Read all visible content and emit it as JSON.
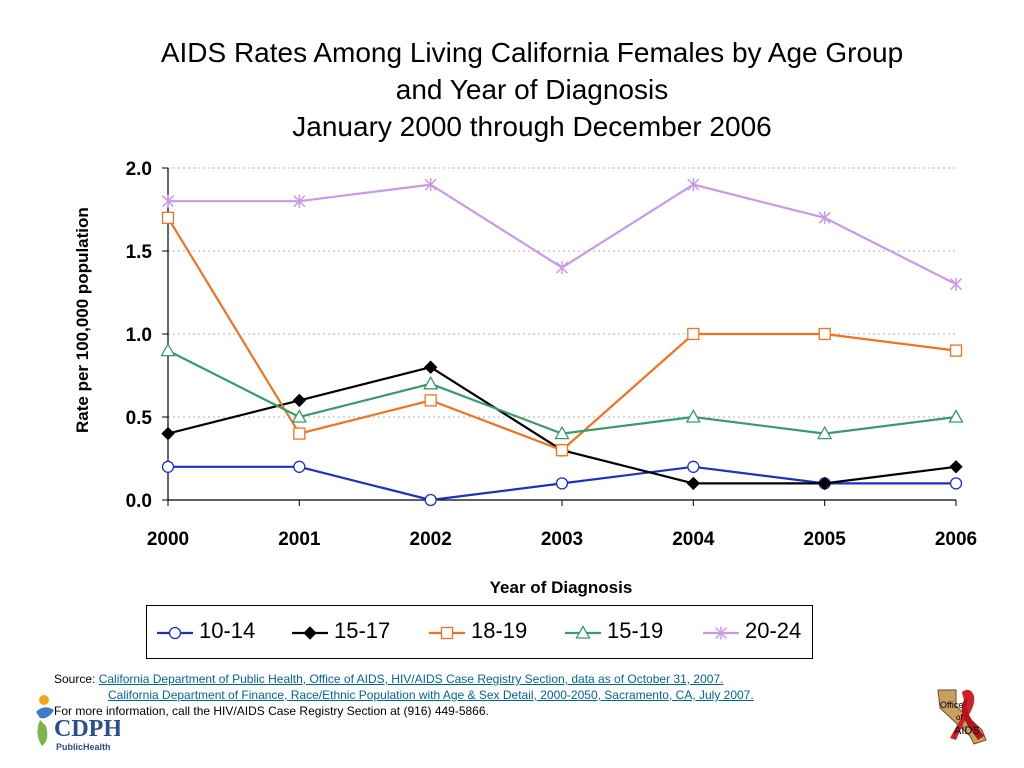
{
  "chart_data": {
    "type": "line",
    "title": "AIDS Rates Among Living California Females by Age Group",
    "title_line2": "and Year of Diagnosis",
    "subtitle": "January 2000 through December 2006",
    "xlabel": "Year of Diagnosis",
    "ylabel": "Rate per 100,000 population",
    "x": [
      "2000",
      "2001",
      "2002",
      "2003",
      "2004",
      "2005",
      "2006"
    ],
    "ylim": [
      0,
      2.0
    ],
    "yticks": [
      "0.0",
      "0.5",
      "1.0",
      "1.5",
      "2.0"
    ],
    "grid": "horizontal dotted",
    "legend_position": "bottom",
    "series": [
      {
        "name": "10-14",
        "color": "#1f2fbf",
        "marker": "circle",
        "values": [
          0.2,
          0.2,
          0.0,
          0.1,
          0.2,
          0.1,
          0.1
        ]
      },
      {
        "name": "15-17",
        "color": "#000000",
        "marker": "diamond",
        "values": [
          0.4,
          0.6,
          0.8,
          0.3,
          0.1,
          0.1,
          0.2
        ]
      },
      {
        "name": "18-19",
        "color": "#f0731f",
        "marker": "square",
        "values": [
          1.7,
          0.4,
          0.6,
          0.3,
          1.0,
          1.0,
          0.9
        ]
      },
      {
        "name": "15-19",
        "color": "#3a9a6a",
        "marker": "triangle",
        "values": [
          0.9,
          0.5,
          0.7,
          0.4,
          0.5,
          0.4,
          0.5
        ]
      },
      {
        "name": "20-24",
        "color": "#c89ae8",
        "marker": "star",
        "values": [
          1.8,
          1.8,
          1.9,
          1.4,
          1.9,
          1.7,
          1.3
        ]
      }
    ]
  },
  "source": {
    "prefix": "Source:",
    "line1": "California Department of Public Health, Office of AIDS, HIV/AIDS Case Registry Section, data as of October 31, 2007.",
    "line2": "California Department of Finance, Race/Ethnic Population with Age & Sex Detail, 2000-2050, Sacramento, CA, July 2007.",
    "line3": "For more information, call the HIV/AIDS Case Registry Section at (916) 449-5866."
  },
  "logos": {
    "cdph": "CDPH",
    "cdph_sub": "PublicHealth",
    "oa_line1": "Office",
    "oa_line2": "of",
    "oa_line3": "AIDS"
  }
}
